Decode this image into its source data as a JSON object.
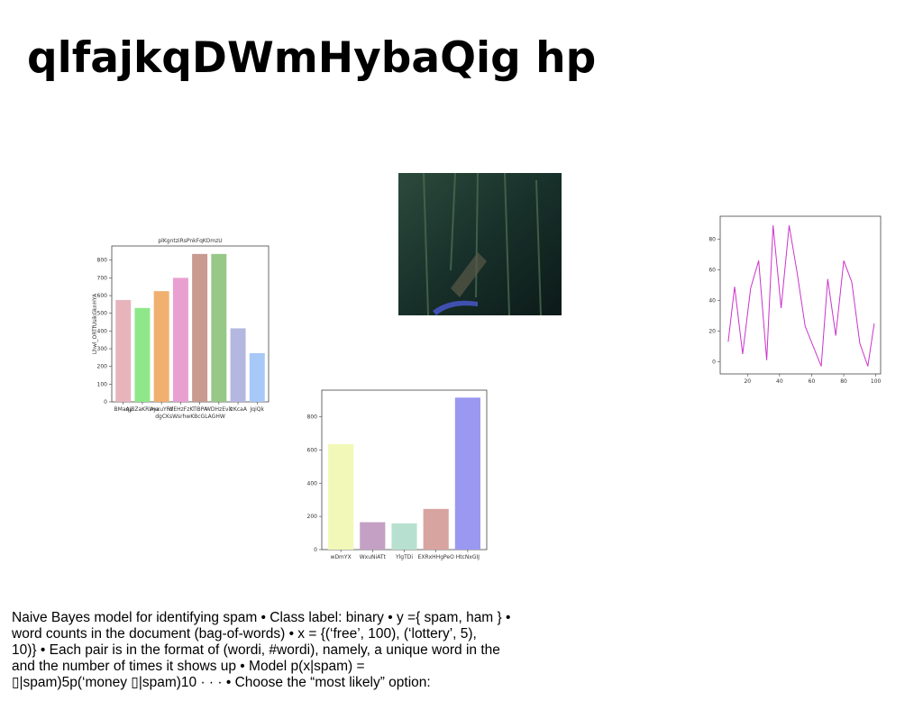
{
  "header": {
    "title": "qlfajkqDWmHybaQig hp"
  },
  "chart_data": [
    {
      "type": "bar",
      "title": "plKgntziRsPnkFqKOmzU",
      "x_label": "dgCKsWsrhwKBcGLAGHW",
      "y_label": "Lhwl_ORTfUsikGknHYA",
      "categories": [
        "BMaqy",
        "AjBZaKRlma",
        "AyxuYFd",
        "WEHzFzK",
        "TlBPA",
        "WDHzEvX",
        "izKcaA",
        "JqiQk"
      ],
      "values": [
        575,
        530,
        625,
        700,
        835,
        835,
        415,
        275
      ],
      "colors": [
        "#e8b4bc",
        "#8ee88a",
        "#f0b070",
        "#e8a0d0",
        "#c89a90",
        "#98c888",
        "#b4b8e0",
        "#a8c8f8"
      ],
      "ylim": [
        0,
        880
      ],
      "yticks": [
        0,
        100,
        200,
        300,
        400,
        500,
        600,
        700,
        800
      ]
    },
    {
      "type": "bar",
      "categories": [
        "wDmYX",
        "WxuNiATt",
        "YlgTDi",
        "EXRxHHgPeO",
        "HtcNxGIJ"
      ],
      "values": [
        635,
        165,
        158,
        245,
        915
      ],
      "colors": [
        "#f2f8b8",
        "#c4a0c4",
        "#b8e0d0",
        "#d8a4a0",
        "#9a98f0"
      ],
      "ylim": [
        0,
        960
      ],
      "yticks": [
        0,
        200,
        400,
        600,
        800
      ]
    },
    {
      "type": "line",
      "x": [
        8,
        12,
        17,
        22,
        27,
        32,
        36,
        41,
        46,
        51,
        56,
        61,
        66,
        70,
        75,
        80,
        85,
        90,
        95,
        99
      ],
      "values": [
        13,
        49,
        5,
        48,
        66,
        1,
        89,
        35,
        89,
        58,
        23,
        10,
        -3,
        54,
        17,
        66,
        52,
        12,
        -3,
        25
      ],
      "color": "#cc33cc",
      "xlim": [
        3,
        103
      ],
      "ylim": [
        -8,
        95
      ],
      "xticks": [
        20,
        40,
        60,
        80,
        100
      ],
      "yticks": [
        0,
        20,
        40,
        60,
        80
      ]
    }
  ],
  "body": {
    "lines": [
      "Naive Bayes model for identifying spam • Class label: binary • y ={ spam, ham } •",
      "word counts in the document (bag-of-words) • x = {(‘free’, 100), (‘lottery’, 5),",
      "10)} • Each pair is in the format of (wordi, #wordi), namely, a unique word in the",
      "and the number of times it shows up • Model p(x|spam) =",
      "▯|spam)5p(‘money ▯|spam)10 · · · • Choose the “most likely” option:"
    ]
  }
}
